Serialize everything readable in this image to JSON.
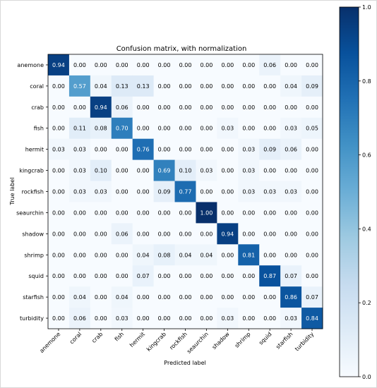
{
  "chart_data": {
    "type": "heatmap",
    "title": "Confusion matrix, with normalization",
    "xlabel": "Predicted label",
    "ylabel": "True label",
    "categories": [
      "anemone",
      "coral",
      "crab",
      "fish",
      "hermit",
      "kingcrab",
      "rockfish",
      "seaurchin",
      "shadow",
      "shrimp",
      "squid",
      "starfish",
      "turbidity"
    ],
    "values": [
      [
        0.94,
        0.0,
        0.0,
        0.0,
        0.0,
        0.0,
        0.0,
        0.0,
        0.0,
        0.0,
        0.06,
        0.0,
        0.0
      ],
      [
        0.0,
        0.57,
        0.04,
        0.13,
        0.13,
        0.0,
        0.0,
        0.0,
        0.0,
        0.0,
        0.0,
        0.04,
        0.09
      ],
      [
        0.0,
        0.0,
        0.94,
        0.06,
        0.0,
        0.0,
        0.0,
        0.0,
        0.0,
        0.0,
        0.0,
        0.0,
        0.0
      ],
      [
        0.0,
        0.11,
        0.08,
        0.7,
        0.0,
        0.0,
        0.0,
        0.0,
        0.03,
        0.0,
        0.0,
        0.03,
        0.05
      ],
      [
        0.03,
        0.03,
        0.0,
        0.0,
        0.76,
        0.0,
        0.0,
        0.0,
        0.0,
        0.03,
        0.09,
        0.06,
        0.0
      ],
      [
        0.0,
        0.03,
        0.1,
        0.0,
        0.0,
        0.69,
        0.1,
        0.03,
        0.0,
        0.03,
        0.0,
        0.0,
        0.0
      ],
      [
        0.0,
        0.03,
        0.03,
        0.0,
        0.0,
        0.09,
        0.77,
        0.0,
        0.0,
        0.03,
        0.03,
        0.03,
        0.0
      ],
      [
        0.0,
        0.0,
        0.0,
        0.0,
        0.0,
        0.0,
        0.0,
        1.0,
        0.0,
        0.0,
        0.0,
        0.0,
        0.0
      ],
      [
        0.0,
        0.0,
        0.0,
        0.06,
        0.0,
        0.0,
        0.0,
        0.0,
        0.94,
        0.0,
        0.0,
        0.0,
        0.0
      ],
      [
        0.0,
        0.0,
        0.0,
        0.0,
        0.04,
        0.08,
        0.04,
        0.04,
        0.0,
        0.81,
        0.0,
        0.0,
        0.0
      ],
      [
        0.0,
        0.0,
        0.0,
        0.0,
        0.07,
        0.0,
        0.0,
        0.0,
        0.0,
        0.0,
        0.87,
        0.07,
        0.0
      ],
      [
        0.0,
        0.04,
        0.0,
        0.04,
        0.0,
        0.0,
        0.0,
        0.0,
        0.0,
        0.0,
        0.0,
        0.86,
        0.07
      ],
      [
        0.0,
        0.06,
        0.0,
        0.03,
        0.0,
        0.0,
        0.0,
        0.0,
        0.03,
        0.0,
        0.0,
        0.03,
        0.84
      ]
    ],
    "colorbar": {
      "range": [
        0.0,
        1.0
      ],
      "ticks": [
        0.0,
        0.2,
        0.4,
        0.6,
        0.8,
        1.0
      ],
      "colormap": "Blues"
    },
    "grid": false
  }
}
